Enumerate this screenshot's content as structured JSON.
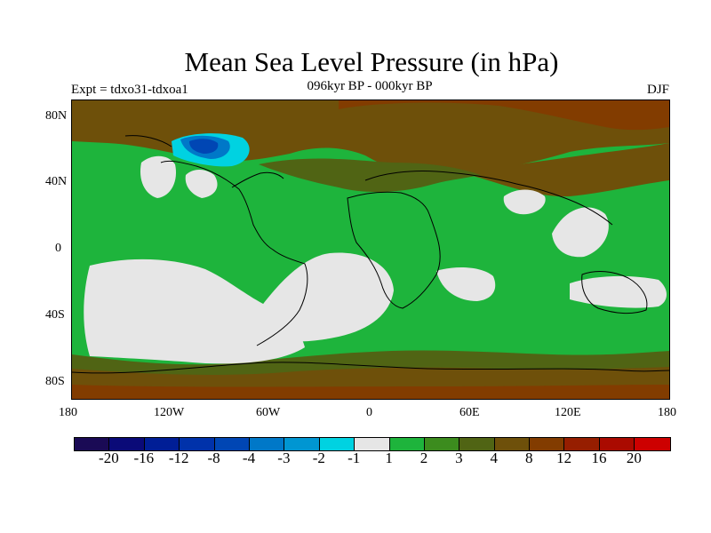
{
  "title": "Mean Sea Level Pressure (in hPa)",
  "subtitle": "096kyr BP - 000kyr BP",
  "experiment": "Expt = tdxo31-tdxoa1",
  "season": "DJF",
  "lat_labels": [
    "80N",
    "40N",
    "0",
    "40S",
    "80S"
  ],
  "lon_labels": [
    "180",
    "120W",
    "60W",
    "0",
    "60E",
    "120E",
    "180"
  ],
  "colorbar": {
    "colors": [
      "#1a0a55",
      "#0a0a78",
      "#001e96",
      "#0032aa",
      "#0046b4",
      "#0078c8",
      "#0096d2",
      "#00d2e1",
      "#e6e6e6",
      "#1eb43c",
      "#3c8c1e",
      "#506414",
      "#6e500a",
      "#823c00",
      "#961e00",
      "#aa0a00",
      "#cd0000"
    ],
    "labels": [
      "-20",
      "-16",
      "-12",
      "-8",
      "-4",
      "-3",
      "-2",
      "-1",
      "1",
      "2",
      "3",
      "4",
      "8",
      "12",
      "16",
      "20"
    ]
  }
}
